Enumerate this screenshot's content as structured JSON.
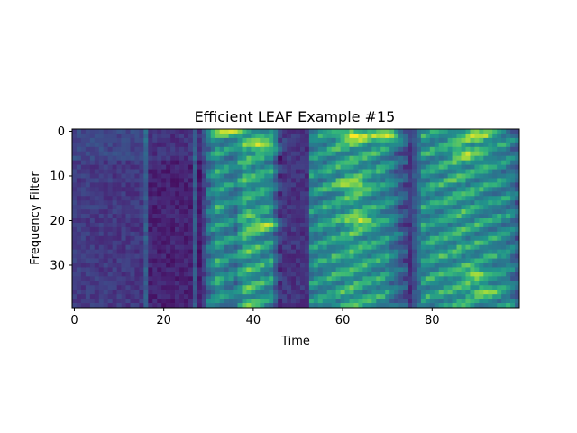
{
  "chart_data": {
    "type": "heatmap",
    "title": "Efficient LEAF Example #15",
    "xlabel": "Time",
    "ylabel": "Frequency Filter",
    "x_range": [
      0,
      99
    ],
    "y_range": [
      0,
      39
    ],
    "y_inverted": true,
    "colormap": "viridis",
    "grid": false,
    "x_ticks": [
      0,
      20,
      40,
      60,
      80
    ],
    "y_ticks": [
      0,
      10,
      20,
      30
    ],
    "value_range": [
      0,
      1
    ],
    "time_envelope": [
      [
        0,
        0.28
      ],
      [
        15,
        0.26
      ],
      [
        16,
        0.42
      ],
      [
        17,
        0.18
      ],
      [
        26,
        0.18
      ],
      [
        27,
        0.42
      ],
      [
        28,
        0.14
      ],
      [
        30,
        0.46
      ],
      [
        32,
        0.62
      ],
      [
        36,
        0.5
      ],
      [
        38,
        0.7
      ],
      [
        44,
        0.58
      ],
      [
        46,
        0.2
      ],
      [
        52,
        0.18
      ],
      [
        53,
        0.55
      ],
      [
        56,
        0.6
      ],
      [
        62,
        0.68
      ],
      [
        70,
        0.58
      ],
      [
        74,
        0.3
      ],
      [
        75,
        0.18
      ],
      [
        78,
        0.6
      ],
      [
        86,
        0.66
      ],
      [
        92,
        0.6
      ],
      [
        97,
        0.56
      ],
      [
        99,
        0.4
      ]
    ],
    "hotspots": [
      {
        "t": 34,
        "f": 0,
        "value": 0.98
      },
      {
        "t": 42,
        "f": 3,
        "value": 0.97
      },
      {
        "t": 42,
        "f": 21,
        "value": 0.92
      },
      {
        "t": 63,
        "f": 1,
        "value": 1.0
      },
      {
        "t": 70,
        "f": 1,
        "value": 0.96
      },
      {
        "t": 62,
        "f": 12,
        "value": 0.9
      },
      {
        "t": 64,
        "f": 20,
        "value": 0.9
      },
      {
        "t": 90,
        "f": 1,
        "value": 0.96
      },
      {
        "t": 88,
        "f": 5,
        "value": 0.9
      },
      {
        "t": 90,
        "f": 32,
        "value": 0.88
      },
      {
        "t": 92,
        "f": 36,
        "value": 0.88
      }
    ]
  }
}
